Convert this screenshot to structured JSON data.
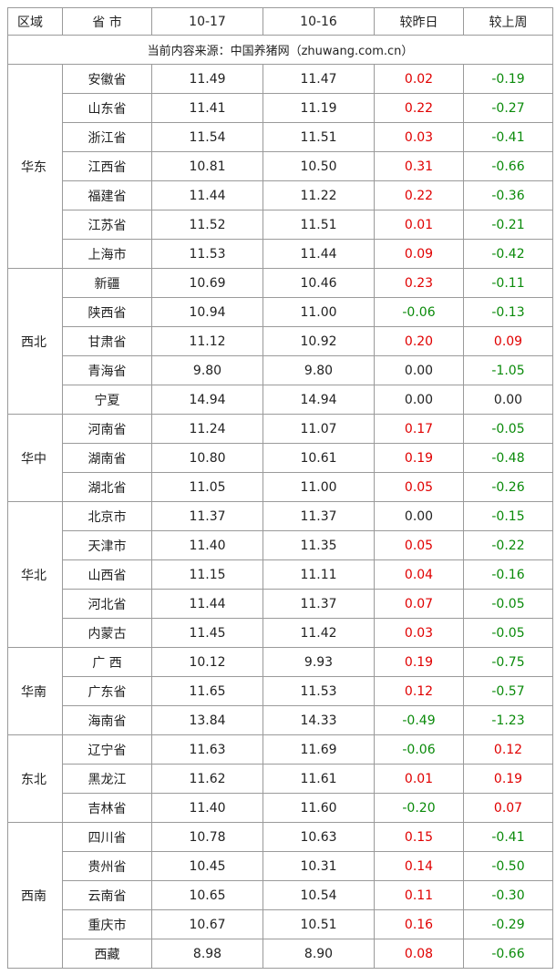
{
  "header": [
    "区域",
    "省 市",
    "10-17",
    "10-16",
    "较昨日",
    "较上周"
  ],
  "source": "当前内容来源：中国养猪网（zhuwang.com.cn）",
  "regions": [
    {
      "name": "华东",
      "rows": [
        [
          "安徽省",
          "11.49",
          "11.47",
          "0.02",
          "-0.19"
        ],
        [
          "山东省",
          "11.41",
          "11.19",
          "0.22",
          "-0.27"
        ],
        [
          "浙江省",
          "11.54",
          "11.51",
          "0.03",
          "-0.41"
        ],
        [
          "江西省",
          "10.81",
          "10.50",
          "0.31",
          "-0.66"
        ],
        [
          "福建省",
          "11.44",
          "11.22",
          "0.22",
          "-0.36"
        ],
        [
          "江苏省",
          "11.52",
          "11.51",
          "0.01",
          "-0.21"
        ],
        [
          "上海市",
          "11.53",
          "11.44",
          "0.09",
          "-0.42"
        ]
      ]
    },
    {
      "name": "西北",
      "rows": [
        [
          "新疆",
          "10.69",
          "10.46",
          "0.23",
          "-0.11"
        ],
        [
          "陕西省",
          "10.94",
          "11.00",
          "-0.06",
          "-0.13"
        ],
        [
          "甘肃省",
          "11.12",
          "10.92",
          "0.20",
          "0.09"
        ],
        [
          "青海省",
          "9.80",
          "9.80",
          "0.00",
          "-1.05"
        ],
        [
          "宁夏",
          "14.94",
          "14.94",
          "0.00",
          "0.00"
        ]
      ]
    },
    {
      "name": "华中",
      "rows": [
        [
          "河南省",
          "11.24",
          "11.07",
          "0.17",
          "-0.05"
        ],
        [
          "湖南省",
          "10.80",
          "10.61",
          "0.19",
          "-0.48"
        ],
        [
          "湖北省",
          "11.05",
          "11.00",
          "0.05",
          "-0.26"
        ]
      ]
    },
    {
      "name": "华北",
      "rows": [
        [
          "北京市",
          "11.37",
          "11.37",
          "0.00",
          "-0.15"
        ],
        [
          "天津市",
          "11.40",
          "11.35",
          "0.05",
          "-0.22"
        ],
        [
          "山西省",
          "11.15",
          "11.11",
          "0.04",
          "-0.16"
        ],
        [
          "河北省",
          "11.44",
          "11.37",
          "0.07",
          "-0.05"
        ],
        [
          "内蒙古",
          "11.45",
          "11.42",
          "0.03",
          "-0.05"
        ]
      ]
    },
    {
      "name": "华南",
      "rows": [
        [
          "广 西",
          "10.12",
          "9.93",
          "0.19",
          "-0.75"
        ],
        [
          "广东省",
          "11.65",
          "11.53",
          "0.12",
          "-0.57"
        ],
        [
          "海南省",
          "13.84",
          "14.33",
          "-0.49",
          "-1.23"
        ]
      ]
    },
    {
      "name": "东北",
      "rows": [
        [
          "辽宁省",
          "11.63",
          "11.69",
          "-0.06",
          "0.12"
        ],
        [
          "黑龙江",
          "11.62",
          "11.61",
          "0.01",
          "0.19"
        ],
        [
          "吉林省",
          "11.40",
          "11.60",
          "-0.20",
          "0.07"
        ]
      ]
    },
    {
      "name": "西南",
      "rows": [
        [
          "四川省",
          "10.78",
          "10.63",
          "0.15",
          "-0.41"
        ],
        [
          "贵州省",
          "10.45",
          "10.31",
          "0.14",
          "-0.50"
        ],
        [
          "云南省",
          "10.65",
          "10.54",
          "0.11",
          "-0.30"
        ],
        [
          "重庆市",
          "10.67",
          "10.51",
          "0.16",
          "-0.29"
        ],
        [
          "西藏",
          "8.98",
          "8.90",
          "0.08",
          "-0.66"
        ]
      ]
    }
  ]
}
